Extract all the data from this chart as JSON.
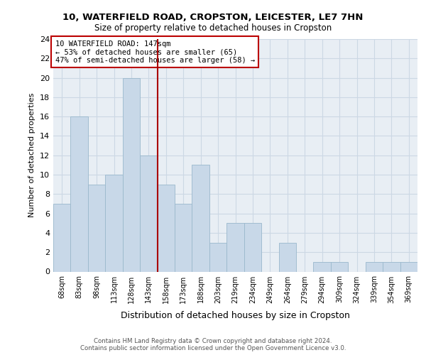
{
  "title1": "10, WATERFIELD ROAD, CROPSTON, LEICESTER, LE7 7HN",
  "title2": "Size of property relative to detached houses in Cropston",
  "xlabel": "Distribution of detached houses by size in Cropston",
  "ylabel": "Number of detached properties",
  "footer1": "Contains HM Land Registry data © Crown copyright and database right 2024.",
  "footer2": "Contains public sector information licensed under the Open Government Licence v3.0.",
  "annotation_line1": "10 WATERFIELD ROAD: 147sqm",
  "annotation_line2": "← 53% of detached houses are smaller (65)",
  "annotation_line3": "47% of semi-detached houses are larger (58) →",
  "bar_labels": [
    "68sqm",
    "83sqm",
    "98sqm",
    "113sqm",
    "128sqm",
    "143sqm",
    "158sqm",
    "173sqm",
    "188sqm",
    "203sqm",
    "219sqm",
    "234sqm",
    "249sqm",
    "264sqm",
    "279sqm",
    "294sqm",
    "309sqm",
    "324sqm",
    "339sqm",
    "354sqm",
    "369sqm"
  ],
  "bar_values": [
    7,
    16,
    9,
    10,
    20,
    12,
    9,
    7,
    11,
    3,
    5,
    5,
    0,
    3,
    0,
    1,
    1,
    0,
    1,
    1,
    1
  ],
  "bar_color": "#c8d8e8",
  "bar_edge_color": "#9ab8cc",
  "vline_color": "#aa0000",
  "vline_index": 5.5,
  "annotation_box_color": "#bb0000",
  "ylim": [
    0,
    24
  ],
  "yticks": [
    0,
    2,
    4,
    6,
    8,
    10,
    12,
    14,
    16,
    18,
    20,
    22,
    24
  ],
  "grid_color": "#ccd8e4",
  "bg_color": "#e8eef4",
  "title1_fontsize": 9.5,
  "title2_fontsize": 8.5,
  "ylabel_fontsize": 8,
  "xlabel_fontsize": 9,
  "tick_fontsize": 7,
  "footer_fontsize": 6.2,
  "annotation_fontsize": 7.5
}
